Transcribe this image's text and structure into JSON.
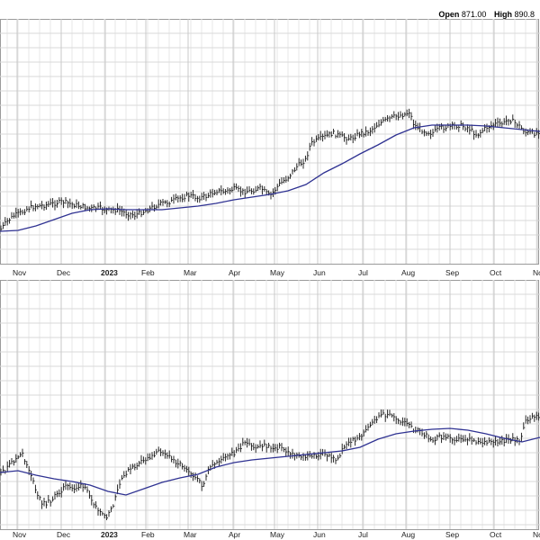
{
  "header": {
    "open_label": "Open",
    "open_value": "871.00",
    "high_label": "High",
    "high_value": "890.8"
  },
  "chart_data": [
    {
      "type": "ohlc",
      "panel": "top",
      "x_axis_labels": [
        "Nov",
        "Dec",
        "2023",
        "Feb",
        "Mar",
        "Apr",
        "May",
        "Jun",
        "Jul",
        "Aug",
        "Sep",
        "Oct",
        "No"
      ],
      "grid": true,
      "series": [
        {
          "kind": "price",
          "points": [
            [
              0,
              256
            ],
            [
              8,
              246
            ],
            [
              15,
              240
            ],
            [
              22,
              237
            ],
            [
              30,
              232
            ],
            [
              40,
              229
            ],
            [
              50,
              228
            ],
            [
              60,
              226
            ],
            [
              70,
              224
            ],
            [
              80,
              227
            ],
            [
              90,
              229
            ],
            [
              100,
              232
            ],
            [
              110,
              231
            ],
            [
              120,
              234
            ],
            [
              130,
              233
            ],
            [
              140,
              237
            ],
            [
              150,
              239
            ],
            [
              160,
              235
            ],
            [
              170,
              230
            ],
            [
              180,
              226
            ],
            [
              190,
              224
            ],
            [
              200,
              220
            ],
            [
              210,
              217
            ],
            [
              220,
              220
            ],
            [
              230,
              218
            ],
            [
              240,
              212
            ],
            [
              250,
              213
            ],
            [
              260,
              210
            ],
            [
              270,
              213
            ],
            [
              280,
              212
            ],
            [
              290,
              209
            ],
            [
              300,
              218
            ],
            [
              310,
              205
            ],
            [
              320,
              197
            ],
            [
              330,
              185
            ],
            [
              340,
              177
            ],
            [
              345,
              160
            ],
            [
              350,
              157
            ],
            [
              360,
              152
            ],
            [
              370,
              148
            ],
            [
              380,
              152
            ],
            [
              390,
              154
            ],
            [
              400,
              148
            ],
            [
              410,
              146
            ],
            [
              420,
              138
            ],
            [
              430,
              133
            ],
            [
              440,
              129
            ],
            [
              450,
              127
            ],
            [
              455,
              124
            ],
            [
              460,
              139
            ],
            [
              470,
              145
            ],
            [
              480,
              148
            ],
            [
              490,
              142
            ],
            [
              500,
              141
            ],
            [
              510,
              139
            ],
            [
              520,
              142
            ],
            [
              530,
              150
            ],
            [
              540,
              142
            ],
            [
              550,
              138
            ],
            [
              560,
              137
            ],
            [
              565,
              132
            ],
            [
              575,
              138
            ],
            [
              585,
              148
            ],
            [
              595,
              148
            ],
            [
              600,
              145
            ]
          ]
        },
        {
          "kind": "moving-average",
          "color": "#2f3292",
          "points": [
            [
              0,
              257
            ],
            [
              20,
              256
            ],
            [
              40,
              251
            ],
            [
              60,
              244
            ],
            [
              80,
              237
            ],
            [
              100,
              233
            ],
            [
              120,
              232
            ],
            [
              140,
              233
            ],
            [
              160,
              233
            ],
            [
              180,
              233
            ],
            [
              200,
              231
            ],
            [
              220,
              229
            ],
            [
              240,
              226
            ],
            [
              260,
              222
            ],
            [
              280,
              219
            ],
            [
              300,
              216
            ],
            [
              320,
              212
            ],
            [
              340,
              205
            ],
            [
              360,
              192
            ],
            [
              380,
              182
            ],
            [
              400,
              171
            ],
            [
              420,
              161
            ],
            [
              440,
              150
            ],
            [
              460,
              142
            ],
            [
              480,
              139
            ],
            [
              500,
              139
            ],
            [
              520,
              139
            ],
            [
              540,
              140
            ],
            [
              560,
              142
            ],
            [
              580,
              144
            ],
            [
              600,
              146
            ]
          ]
        }
      ]
    },
    {
      "type": "ohlc",
      "panel": "bottom",
      "x_axis_labels": [
        "Nov",
        "Dec",
        "2023",
        "Feb",
        "Mar",
        "Apr",
        "May",
        "Jun",
        "Jul",
        "Aug",
        "Sep",
        "Oct",
        "No"
      ],
      "grid": true,
      "series": [
        {
          "kind": "price",
          "points": [
            [
              0,
              528
            ],
            [
              8,
              520
            ],
            [
              15,
              512
            ],
            [
              25,
              505
            ],
            [
              35,
              528
            ],
            [
              40,
              548
            ],
            [
              48,
              560
            ],
            [
              55,
              557
            ],
            [
              65,
              548
            ],
            [
              72,
              540
            ],
            [
              80,
              543
            ],
            [
              90,
              540
            ],
            [
              98,
              546
            ],
            [
              105,
              560
            ],
            [
              112,
              572
            ],
            [
              118,
              575
            ],
            [
              125,
              565
            ],
            [
              132,
              540
            ],
            [
              140,
              525
            ],
            [
              150,
              518
            ],
            [
              160,
              512
            ],
            [
              170,
              505
            ],
            [
              180,
              500
            ],
            [
              190,
              510
            ],
            [
              200,
              515
            ],
            [
              210,
              522
            ],
            [
              218,
              532
            ],
            [
              225,
              540
            ],
            [
              232,
              522
            ],
            [
              242,
              512
            ],
            [
              252,
              508
            ],
            [
              262,
              502
            ],
            [
              272,
              492
            ],
            [
              282,
              498
            ],
            [
              292,
              494
            ],
            [
              302,
              498
            ],
            [
              312,
              496
            ],
            [
              320,
              503
            ],
            [
              330,
              505
            ],
            [
              340,
              508
            ],
            [
              350,
              506
            ],
            [
              360,
              505
            ],
            [
              370,
              508
            ],
            [
              375,
              512
            ],
            [
              380,
              498
            ],
            [
              390,
              490
            ],
            [
              400,
              485
            ],
            [
              410,
              475
            ],
            [
              420,
              463
            ],
            [
              430,
              460
            ],
            [
              440,
              465
            ],
            [
              450,
              470
            ],
            [
              460,
              477
            ],
            [
              470,
              482
            ],
            [
              480,
              488
            ],
            [
              490,
              485
            ],
            [
              500,
              486
            ],
            [
              510,
              488
            ],
            [
              520,
              487
            ],
            [
              530,
              490
            ],
            [
              540,
              492
            ],
            [
              550,
              492
            ],
            [
              560,
              490
            ],
            [
              570,
              487
            ],
            [
              578,
              490
            ],
            [
              585,
              466
            ],
            [
              592,
              464
            ],
            [
              600,
              462
            ]
          ]
        },
        {
          "kind": "moving-average",
          "color": "#2f3292",
          "points": [
            [
              0,
              525
            ],
            [
              20,
              523
            ],
            [
              40,
              528
            ],
            [
              60,
              532
            ],
            [
              80,
              535
            ],
            [
              100,
              539
            ],
            [
              120,
              546
            ],
            [
              140,
              550
            ],
            [
              160,
              543
            ],
            [
              180,
              536
            ],
            [
              200,
              531
            ],
            [
              220,
              527
            ],
            [
              240,
              519
            ],
            [
              260,
              514
            ],
            [
              280,
              511
            ],
            [
              300,
              509
            ],
            [
              320,
              507
            ],
            [
              340,
              505
            ],
            [
              360,
              503
            ],
            [
              380,
              501
            ],
            [
              400,
              497
            ],
            [
              420,
              488
            ],
            [
              440,
              482
            ],
            [
              460,
              479
            ],
            [
              480,
              477
            ],
            [
              500,
              476
            ],
            [
              520,
              478
            ],
            [
              540,
              482
            ],
            [
              560,
              487
            ],
            [
              580,
              491
            ],
            [
              600,
              486
            ]
          ]
        }
      ]
    }
  ]
}
